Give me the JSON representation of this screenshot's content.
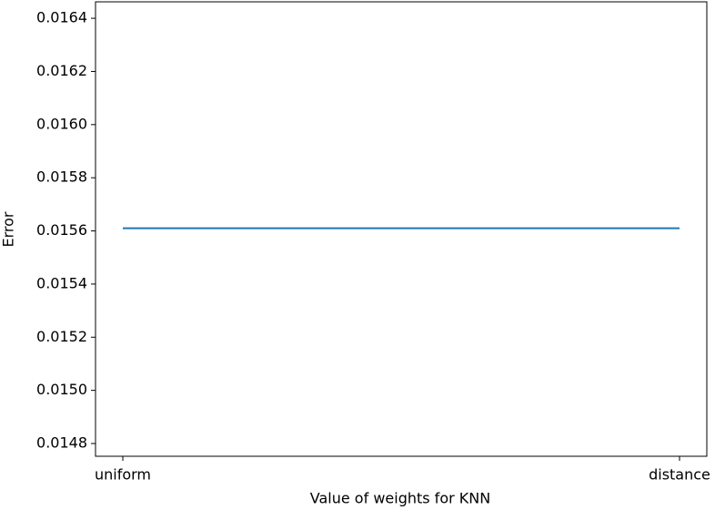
{
  "chart_data": {
    "type": "line",
    "x_label": "Value of weights for KNN",
    "y_label": "Error",
    "categories": [
      "uniform",
      "distance"
    ],
    "values": [
      0.01561,
      0.01561
    ],
    "color": "#1f77b4",
    "ylim": [
      0.014752,
      0.016462
    ],
    "yticks": [
      0.0148,
      {
        "value": 0.015,
        "label": "0.0150"
      },
      0.0152,
      0.0154,
      0.0156,
      0.0158,
      {
        "value": 0.016,
        "label": "0.0160"
      },
      0.0162,
      0.0164
    ],
    "grid": false
  }
}
